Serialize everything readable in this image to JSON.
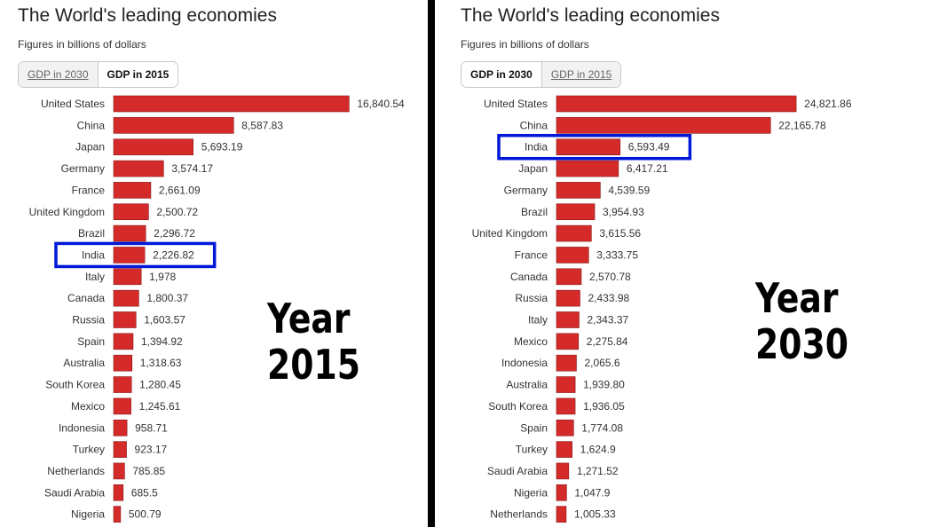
{
  "colors": {
    "bar": "#d42a2a",
    "bar_stroke": "#8a1a1a",
    "highlight": "#0018d8"
  },
  "panels": [
    {
      "title": "The World's leading economies",
      "subtitle": "Figures in billions of dollars",
      "tabs": [
        {
          "label": "GDP in 2030",
          "active": false
        },
        {
          "label": "GDP in 2015",
          "active": true
        }
      ],
      "year_note": [
        "Year",
        "2015"
      ],
      "highlight": "India"
    },
    {
      "title": "The World's leading economies",
      "subtitle": "Figures in billions of dollars",
      "tabs": [
        {
          "label": "GDP in 2030",
          "active": true
        },
        {
          "label": "GDP in 2015",
          "active": false
        }
      ],
      "year_note": [
        "Year",
        "2030"
      ],
      "highlight": "India"
    }
  ],
  "chart_data": [
    {
      "type": "bar",
      "orientation": "horizontal",
      "categories": [
        "United States",
        "China",
        "Japan",
        "Germany",
        "France",
        "United Kingdom",
        "Brazil",
        "India",
        "Italy",
        "Canada",
        "Russia",
        "Spain",
        "Australia",
        "South Korea",
        "Mexico",
        "Indonesia",
        "Turkey",
        "Netherlands",
        "Saudi Arabia",
        "Nigeria"
      ],
      "values": [
        16840.54,
        8587.83,
        5693.19,
        3574.17,
        2661.09,
        2500.72,
        2296.72,
        2226.82,
        1978,
        1800.37,
        1603.57,
        1394.92,
        1318.63,
        1280.45,
        1245.61,
        958.71,
        923.17,
        785.85,
        685.5,
        500.79
      ],
      "value_labels": [
        "16,840.54",
        "8,587.83",
        "5,693.19",
        "3,574.17",
        "2,661.09",
        "2,500.72",
        "2,296.72",
        "2,226.82",
        "1,978",
        "1,800.37",
        "1,603.57",
        "1,394.92",
        "1,318.63",
        "1,280.45",
        "1,245.61",
        "958.71",
        "923.17",
        "785.85",
        "685.5",
        "500.79"
      ],
      "title": "The World's leading economies",
      "subtitle": "Figures in billions of dollars",
      "xlim": [
        0,
        17200
      ],
      "grid": false
    },
    {
      "type": "bar",
      "orientation": "horizontal",
      "categories": [
        "United States",
        "China",
        "India",
        "Japan",
        "Germany",
        "Brazil",
        "United Kingdom",
        "France",
        "Canada",
        "Russia",
        "Italy",
        "Mexico",
        "Indonesia",
        "Australia",
        "South Korea",
        "Spain",
        "Turkey",
        "Saudi Arabia",
        "Nigeria",
        "Netherlands"
      ],
      "values": [
        24821.86,
        22165.78,
        6593.49,
        6417.21,
        4539.59,
        3954.93,
        3615.56,
        3333.75,
        2570.78,
        2433.98,
        2343.37,
        2275.84,
        2065.6,
        1939.8,
        1936.05,
        1774.08,
        1624.9,
        1271.52,
        1047.9,
        1005.33
      ],
      "value_labels": [
        "24,821.86",
        "22,165.78",
        "6,593.49",
        "6,417.21",
        "4,539.59",
        "3,954.93",
        "3,615.56",
        "3,333.75",
        "2,570.78",
        "2,433.98",
        "2,343.37",
        "2,275.84",
        "2,065.6",
        "1,939.80",
        "1,936.05",
        "1,774.08",
        "1,624.9",
        "1,271.52",
        "1,047.9",
        "1,005.33"
      ],
      "title": "The World's leading economies",
      "subtitle": "Figures in billions of dollars",
      "xlim": [
        0,
        24900
      ],
      "grid": false
    }
  ]
}
